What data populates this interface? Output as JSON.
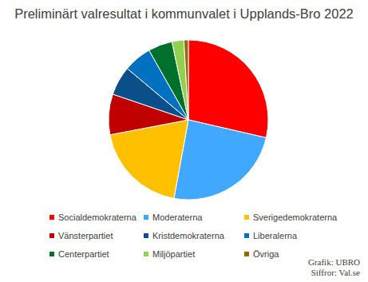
{
  "chart_data": {
    "type": "pie",
    "title": "Preliminärt valresultat i kommunvalet i Upplands-Bro 2022",
    "categories": [
      "Socialdemokraterna",
      "Moderaterna",
      "Sverigedemokraterna",
      "Vänsterpartiet",
      "Kristdemokraterna",
      "Liberalerna",
      "Centerpartiet",
      "Miljöpartiet",
      "Övriga"
    ],
    "values": [
      28.6,
      24.3,
      19.1,
      8.2,
      5.9,
      5.7,
      4.9,
      2.4,
      0.9
    ],
    "colors": [
      "#ff0000",
      "#41a8ff",
      "#ffc000",
      "#c00000",
      "#0b4f8a",
      "#0070c0",
      "#00702c",
      "#92d050",
      "#996600"
    ],
    "legend": "bottom",
    "annotations": [
      "Grafik: UBRO",
      "Siffror: Val.se"
    ]
  }
}
